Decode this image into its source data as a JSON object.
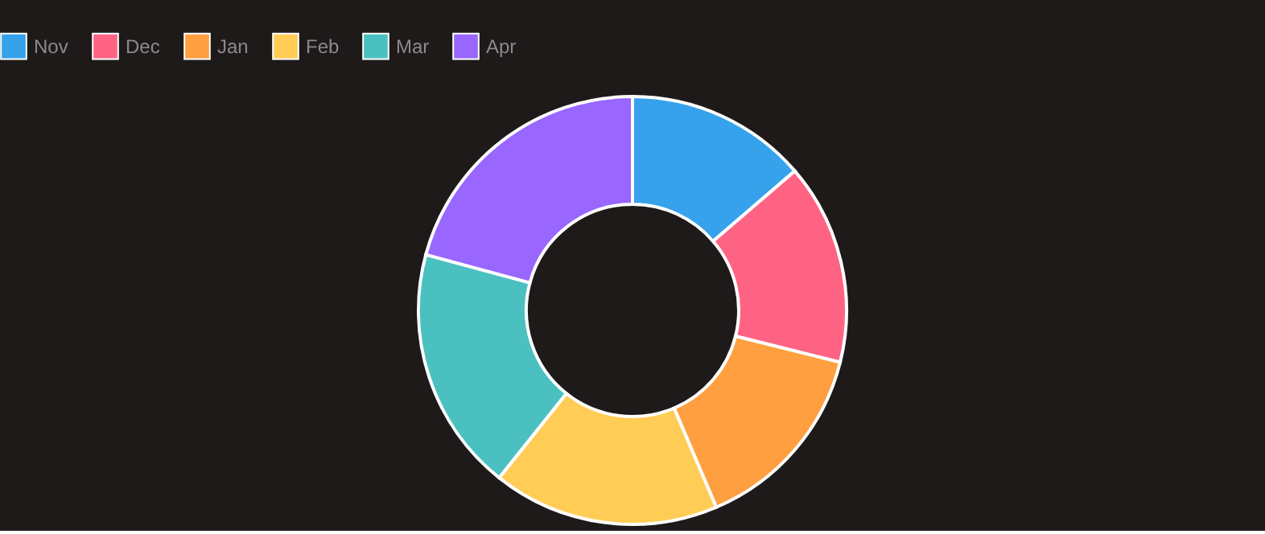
{
  "chart_data": {
    "type": "donut",
    "categories": [
      "Nov",
      "Dec",
      "Jan",
      "Feb",
      "Mar",
      "Apr"
    ],
    "values": [
      13.7,
      15.2,
      14.7,
      17.1,
      18.5,
      20.8
    ],
    "colors": [
      "#36a2eb",
      "#ff6384",
      "#ff9f40",
      "#ffcd56",
      "#4bc0c0",
      "#9966ff"
    ],
    "legend": "top"
  }
}
